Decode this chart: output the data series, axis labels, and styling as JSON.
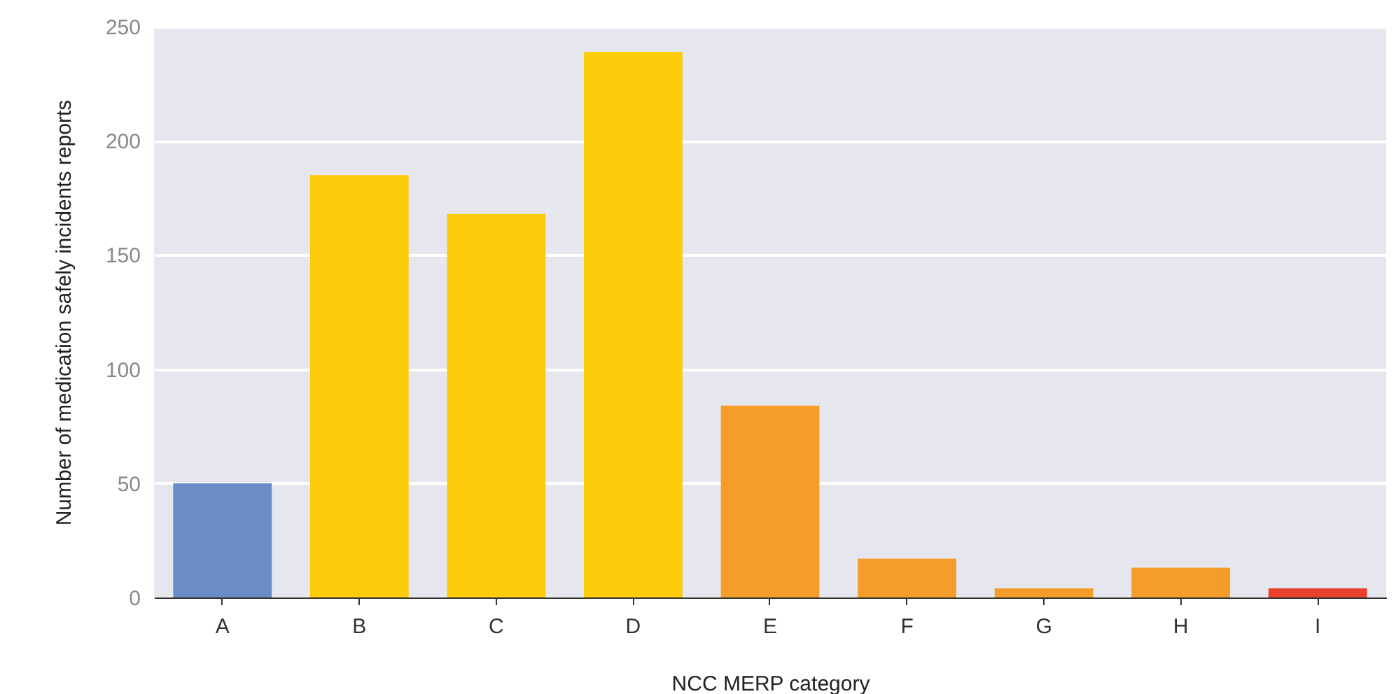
{
  "chart_data": {
    "type": "bar",
    "xlabel": "NCC MERP category",
    "ylabel": "Number of medication safely incidents reports",
    "categories": [
      "A",
      "B",
      "C",
      "D",
      "E",
      "F",
      "G",
      "H",
      "I"
    ],
    "values": [
      50,
      185,
      168,
      239,
      84,
      17,
      4,
      13,
      4
    ],
    "colors": [
      "#6a8cc7",
      "#fccb0a",
      "#fccb0a",
      "#fccb0a",
      "#f59d2a",
      "#f59d2a",
      "#f59d2a",
      "#f59d2a",
      "#e8412c"
    ],
    "ylim": [
      0,
      250
    ],
    "yticks": [
      0,
      50,
      100,
      150,
      200,
      250
    ],
    "grid": "y"
  }
}
